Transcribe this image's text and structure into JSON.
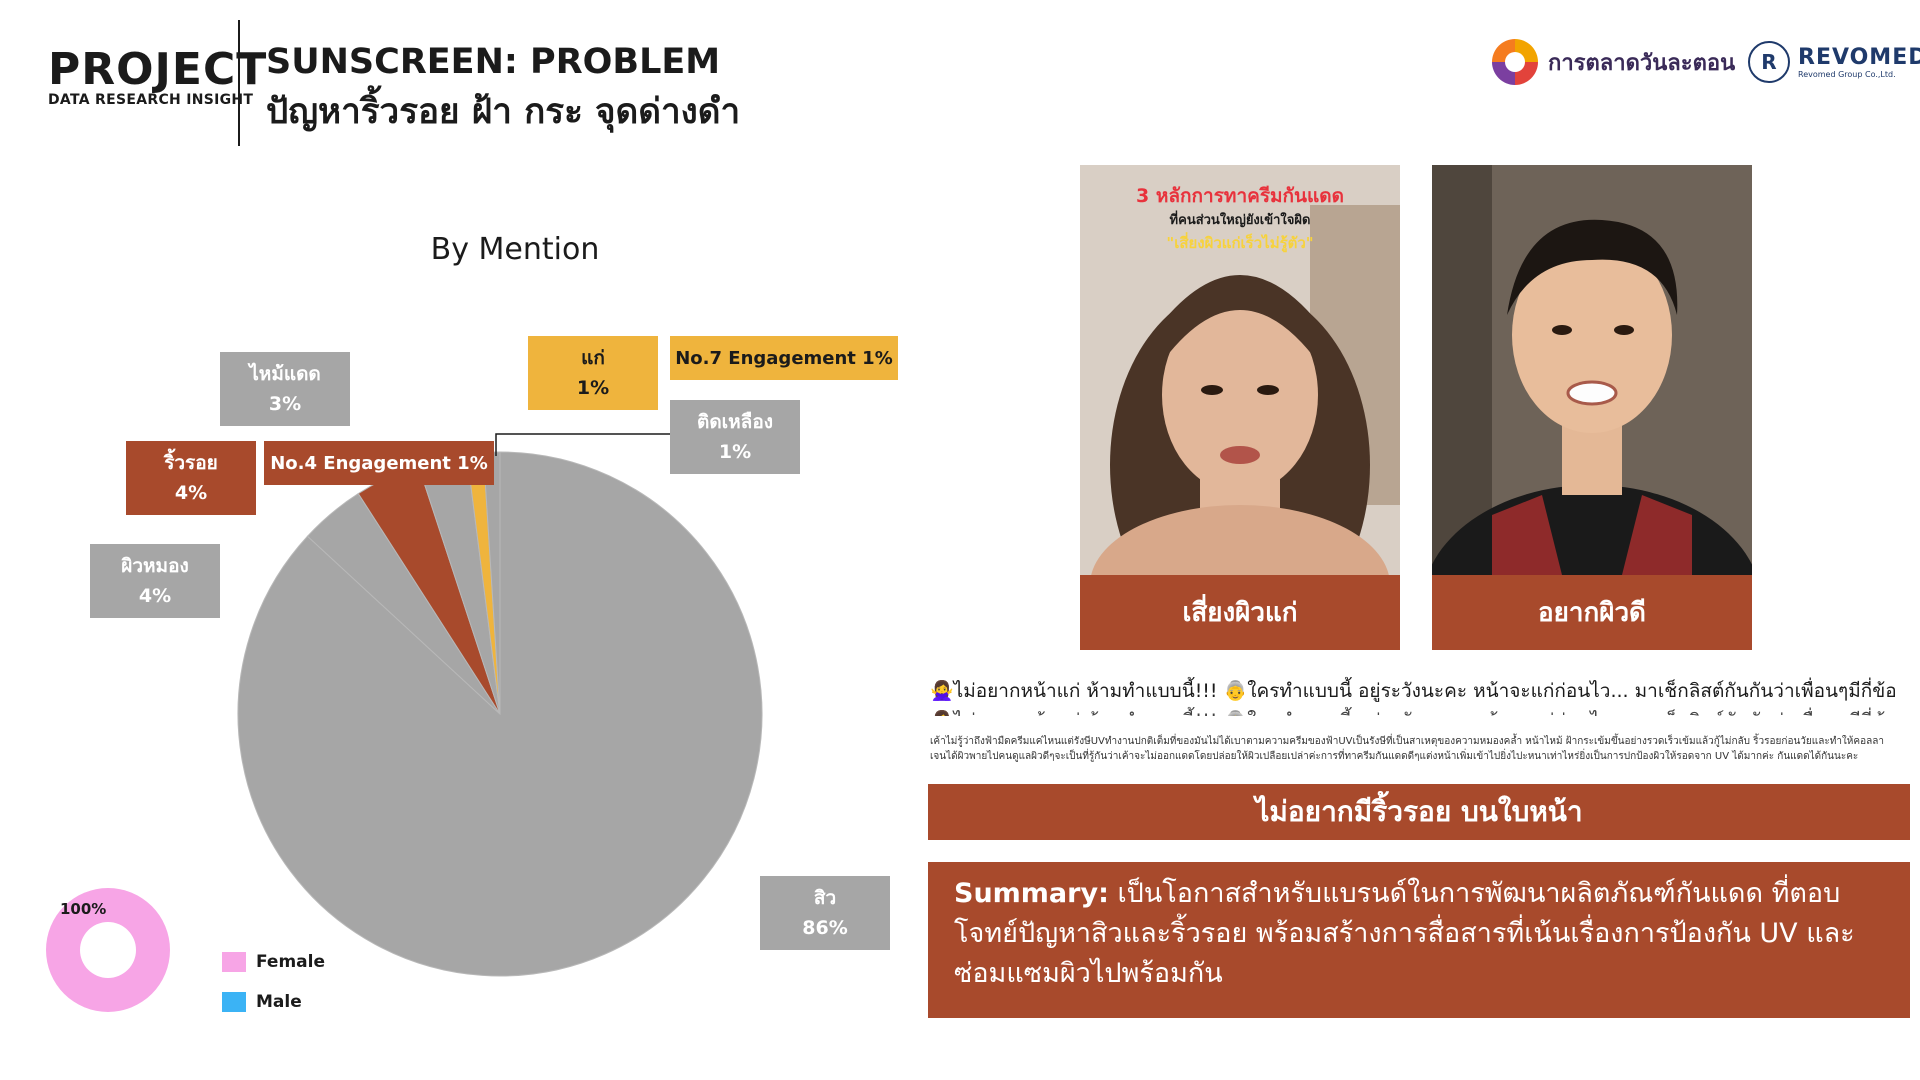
{
  "header": {
    "project": "PROJECT",
    "subtitle": "DATA RESEARCH INSIGHT",
    "title_line1": "SUNSCREEN: PROBLEM",
    "title_line2": "ปัญหาริ้วรอย ฝ้า กระ จุดด่างดำ"
  },
  "logos": {
    "logo1_text": "การตลาดวันละตอน",
    "logo2_name": "REVOMED",
    "logo2_sub": "Revomed Group Co.,Ltd.",
    "logo2_mark": "R"
  },
  "colors": {
    "gray": "#a6a6a6",
    "brown": "#a84a2c",
    "yellow": "#efb43d",
    "female": "#f7a5e6",
    "male": "#3bb3f5"
  },
  "chart_data": [
    {
      "type": "pie",
      "title": "By Mention",
      "slices": [
        {
          "label": "สิว",
          "value": 86,
          "display": "86%",
          "color": "gray"
        },
        {
          "label": "ผิวหมอง",
          "value": 4,
          "display": "4%",
          "color": "gray"
        },
        {
          "label": "ริ้วรอย",
          "value": 4,
          "display": "4%",
          "color": "brown"
        },
        {
          "label": "ไหม้แดด",
          "value": 3,
          "display": "3%",
          "color": "gray"
        },
        {
          "label": "แก่",
          "value": 1,
          "display": "1%",
          "color": "yellow"
        },
        {
          "label": "ติดเหลือง",
          "value": 1,
          "display": "1%",
          "color": "gray"
        }
      ],
      "annotations": [
        "No.4 Engagement 1%",
        "No.7 Engagement 1%"
      ]
    },
    {
      "type": "pie",
      "title": "",
      "slices": [
        {
          "label": "Female",
          "value": 100,
          "display": "100%"
        },
        {
          "label": "Male",
          "value": 0
        }
      ]
    }
  ],
  "legend": {
    "female": "Female",
    "male": "Male"
  },
  "videos": [
    {
      "caption": "เสี่ยงผิวแก่",
      "overlay1": "3 หลักการทาครีมกันแดด",
      "overlay2": "ที่คนส่วนใหญ่ยังเข้าใจผิด",
      "overlay3": "\"เสี่ยงผิวแก่เร็วไม่รู้ตัว\""
    },
    {
      "caption": "อยากผิวดี"
    }
  ],
  "post": {
    "title": "🙅‍♀️ไม่อยากหน้าแก่ ห้ามทำแบบนี้!!! 👵ใครทำแบบนี้ อยู่ระวังนะคะ หน้าจะแก่ก่อนไว... มาเช็กลิสต์กันกันว่าเพื่อนๆมีกี่ข้อ",
    "body": "เค้าไม่รู้ว่าถึงฟ้ามืดครีมแค่ไหนแต่รังษีUVทำงานปกติเต็มที่ของมันไม่ได้เบาตามความครีมของฟ้าUVเป็นรังษีที่เป็นสาเหตุของความหมองคล้ำ หน้าไหม้ ฝ้ากระเข้มขึ้นอย่างรวดเร็วเข้มแล้วกู้ไม่กลับ ริ้วรอยก่อนวัยและทำให้คอลลาเจนได้ผิวพายไปคนดูแลผิวดีๆจะเป็นที่รู้กันว่าเค้าจะไม่ออกแดดโดยปล่อยให้ผิวเปลือยเปล่าค่ะการที่ทาครีมกันแดดดีๆแต่งหน้าเพิ่มเข้าไปยิ่งไปะหนาเท่าไหร่ยิ่งเป็นการปกป้องผิวให้รอดจาก UV ได้มากค่ะ กันแดดได้กันนะคะ"
  },
  "banner": "ไม่อยากมีริ้วรอย บนใบหน้า",
  "summary": {
    "label": "Summary:",
    "text": " เป็นโอกาสสำหรับแบรนด์ในการพัฒนาผลิตภัณฑ์กันแดด ที่ตอบโจทย์ปัญหาสิวและริ้วรอย พร้อมสร้างการสื่อสารที่เน้นเรื่องการป้องกัน UV และซ่อมแซมผิวไปพร้อมกัน"
  }
}
